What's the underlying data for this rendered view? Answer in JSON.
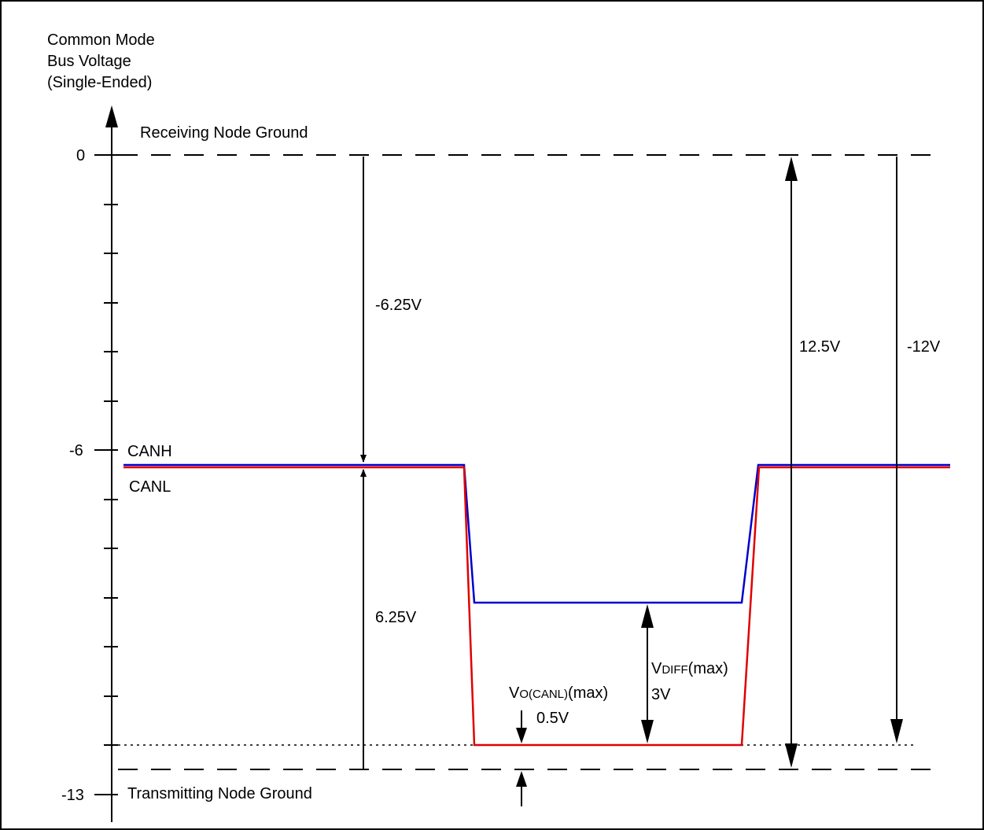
{
  "axis": {
    "title_lines": [
      "Common Mode",
      "Bus Voltage",
      "(Single-Ended)"
    ],
    "tick_labels": {
      "top": "0",
      "middle": "-6",
      "bottom": "-13"
    }
  },
  "references": {
    "receiving_ground": "Receiving Node Ground",
    "transmitting_ground": "Transmitting Node Ground"
  },
  "signals": {
    "canh": {
      "label": "CANH",
      "color": "#0000cc"
    },
    "canl": {
      "label": "CANL",
      "color": "#e00000"
    }
  },
  "measurements": {
    "upper_offset": "-6.25V",
    "lower_offset": "6.25V",
    "total_span": "12.5V",
    "ground_shift": "-12V",
    "vdiff_label": {
      "main": "V",
      "sub": "DIFF",
      "tail": "(max)"
    },
    "vdiff_value": "3V",
    "vo_label": {
      "main": "V",
      "sub1": "O",
      "paren": "(CANL)",
      "tail": "(max)"
    },
    "vo_value": "0.5V"
  }
}
